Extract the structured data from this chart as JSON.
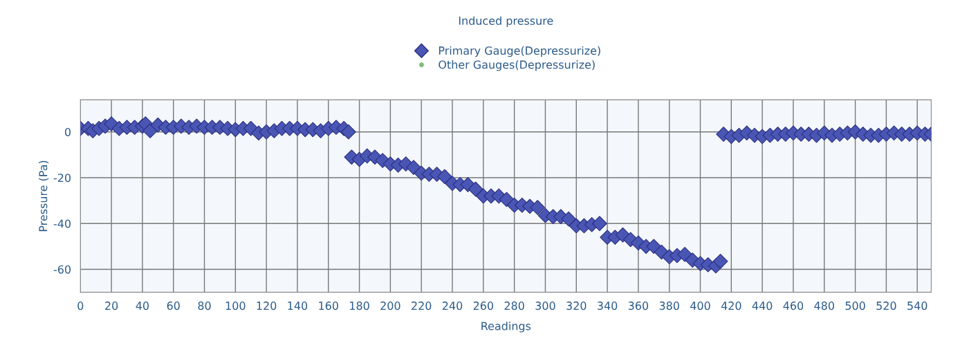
{
  "chart_data": {
    "type": "scatter",
    "title": "Induced pressure",
    "xlabel": "Readings",
    "ylabel": "Pressure (Pa)",
    "xlim": [
      0,
      549
    ],
    "ylim": [
      -70,
      14
    ],
    "xticks": [
      0,
      20,
      40,
      60,
      80,
      100,
      120,
      140,
      160,
      180,
      200,
      220,
      240,
      260,
      280,
      300,
      320,
      340,
      360,
      380,
      400,
      420,
      440,
      460,
      480,
      500,
      520,
      540
    ],
    "yticks": [
      -60,
      -40,
      -20,
      0
    ],
    "grid": true,
    "legend": "top",
    "marker": "diamond",
    "series": [
      {
        "name": "Primary Gauge(Depressurize)",
        "color": "#4a56b4",
        "x": [
          0,
          5,
          8,
          12,
          16,
          20,
          25,
          30,
          35,
          40,
          42,
          45,
          50,
          55,
          60,
          65,
          70,
          75,
          80,
          85,
          90,
          95,
          100,
          105,
          110,
          115,
          120,
          125,
          130,
          135,
          140,
          145,
          150,
          155,
          160,
          165,
          170,
          173,
          175,
          180,
          185,
          190,
          195,
          200,
          205,
          210,
          215,
          220,
          225,
          230,
          235,
          240,
          245,
          250,
          255,
          260,
          265,
          270,
          275,
          280,
          285,
          290,
          295,
          300,
          305,
          310,
          315,
          320,
          325,
          330,
          335,
          340,
          345,
          350,
          355,
          360,
          365,
          370,
          375,
          380,
          385,
          390,
          395,
          400,
          405,
          410,
          413,
          415,
          420,
          425,
          430,
          435,
          440,
          445,
          450,
          455,
          460,
          465,
          470,
          475,
          480,
          485,
          490,
          495,
          500,
          505,
          510,
          515,
          520,
          525,
          530,
          535,
          540,
          545,
          549
        ],
        "values": [
          1.5,
          1.5,
          0.5,
          1.5,
          2.5,
          3.5,
          1.5,
          2,
          2,
          2.5,
          3.5,
          0.5,
          3,
          2,
          2,
          2.5,
          2,
          2.5,
          2,
          2,
          2,
          1.5,
          1,
          1.5,
          1.5,
          -0.5,
          0,
          0.5,
          1.5,
          1.5,
          1.5,
          1,
          1,
          0.5,
          1.5,
          2,
          1.5,
          0,
          -11,
          -12,
          -10.5,
          -11,
          -12.5,
          -14,
          -14.5,
          -14,
          -15.5,
          -18,
          -18.5,
          -18.5,
          -19.5,
          -22.5,
          -23,
          -23,
          -25,
          -28,
          -28,
          -28,
          -29.5,
          -32,
          -32,
          -32.5,
          -33,
          -36.5,
          -37,
          -37,
          -38,
          -41,
          -41,
          -40.5,
          -40,
          -46,
          -46,
          -45,
          -47,
          -48.5,
          -50,
          -50,
          -52.5,
          -54.5,
          -54,
          -53.5,
          -56,
          -57.5,
          -58,
          -58.5,
          -56.5,
          -1,
          -2,
          -1.5,
          -0.5,
          -1.5,
          -2,
          -1.5,
          -1,
          -1,
          -0.5,
          -1,
          -1,
          -1.5,
          -0.5,
          -1.5,
          -1,
          -0.5,
          0,
          -1,
          -1.5,
          -1.5,
          -1,
          -0.5,
          -1,
          -1,
          -0.5,
          -1,
          -1
        ]
      },
      {
        "name": "Other Gauges(Depressurize)",
        "color": "#7fbf7f",
        "marker": "circle"
      }
    ]
  }
}
